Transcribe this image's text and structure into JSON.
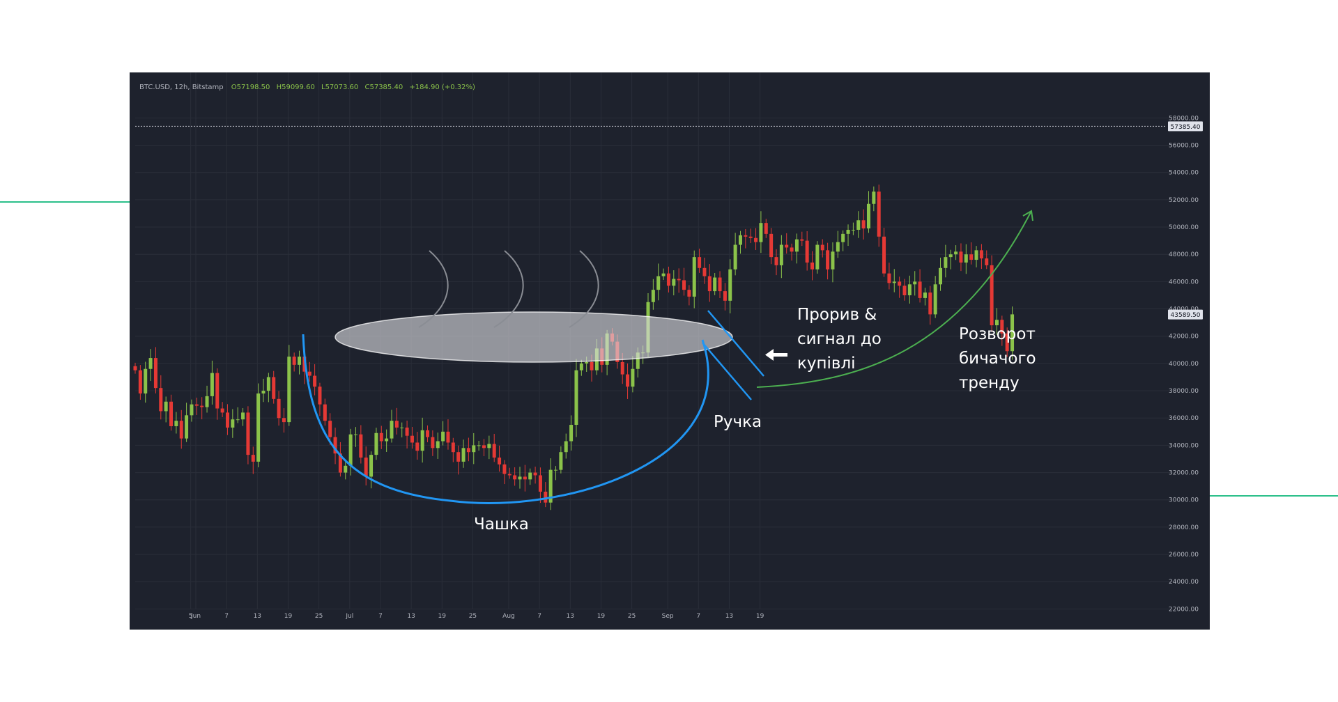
{
  "page": {
    "accent_color": "#2bbf8a"
  },
  "chart_data": {
    "type": "candlestick",
    "header": {
      "symbol": "BTC.USD, 12h, Bitstamp",
      "open": "O57198.50",
      "high": "H59099.60",
      "low": "L57073.60",
      "close": "C57385.40",
      "change": "+184.90 (+0.32%)"
    },
    "ylim": [
      21000,
      59500
    ],
    "y_ticks": [
      "22000.00",
      "24000.00",
      "26000.00",
      "28000.00",
      "30000.00",
      "32000.00",
      "34000.00",
      "36000.00",
      "38000.00",
      "40000.00",
      "42000.00",
      "44000.00",
      "46000.00",
      "48000.00",
      "50000.00",
      "52000.00",
      "54000.00",
      "56000.00",
      "58000.00"
    ],
    "x_ticks": [
      {
        "day": -1,
        "label": "5"
      },
      {
        "day": 0,
        "label": "Jun"
      },
      {
        "day": 6,
        "label": "7"
      },
      {
        "day": 12,
        "label": "13"
      },
      {
        "day": 18,
        "label": "19"
      },
      {
        "day": 24,
        "label": "25"
      },
      {
        "day": 30,
        "label": "Jul"
      },
      {
        "day": 36,
        "label": "7"
      },
      {
        "day": 42,
        "label": "13"
      },
      {
        "day": 48,
        "label": "19"
      },
      {
        "day": 54,
        "label": "25"
      },
      {
        "day": 61,
        "label": "Aug"
      },
      {
        "day": 67,
        "label": "7"
      },
      {
        "day": 73,
        "label": "13"
      },
      {
        "day": 79,
        "label": "19"
      },
      {
        "day": 85,
        "label": "25"
      },
      {
        "day": 92,
        "label": "Sep"
      },
      {
        "day": 98,
        "label": "7"
      },
      {
        "day": 104,
        "label": "13"
      },
      {
        "day": 110,
        "label": "19"
      }
    ],
    "price_labels": [
      {
        "value": 57385.4,
        "text": "57385.40",
        "bg": "#e0e3eb",
        "fg": "#131722"
      },
      {
        "value": 43589.5,
        "text": "43589.50",
        "bg": "#e0e3eb",
        "fg": "#131722"
      }
    ],
    "closes": [
      39500,
      37800,
      39600,
      40400,
      38200,
      36500,
      37200,
      35400,
      35800,
      34500,
      36200,
      37000,
      36900,
      36800,
      37600,
      39300,
      36700,
      36400,
      35300,
      35900,
      35900,
      36400,
      33300,
      32800,
      37800,
      38000,
      39000,
      37400,
      36000,
      35700,
      40500,
      39900,
      40500,
      39400,
      39100,
      38300,
      37000,
      35800,
      34600,
      33400,
      32000,
      32500,
      34800,
      34800,
      33100,
      31700,
      33300,
      34900,
      34300,
      34500,
      35800,
      35300,
      35300,
      34700,
      34200,
      33600,
      35100,
      34600,
      33800,
      34300,
      35000,
      34200,
      33500,
      32800,
      33800,
      33500,
      34000,
      34000,
      33800,
      34100,
      33100,
      32600,
      31900,
      31800,
      31500,
      31700,
      31500,
      32000,
      31800,
      30600,
      29800,
      32200,
      32200,
      33500,
      34300,
      35500,
      39500,
      40000,
      40100,
      39500,
      41100,
      39900,
      42200,
      41600,
      40100,
      39200,
      38300,
      39600,
      40800,
      40800,
      44500,
      45400,
      46400,
      46600,
      45700,
      46200,
      46100,
      45400,
      44900,
      47800,
      47000,
      46400,
      45300,
      46300,
      45300,
      44600,
      46900,
      48700,
      49400,
      49300,
      49200,
      48900,
      50300,
      49500,
      47800,
      47200,
      48700,
      48500,
      48200,
      49100,
      49000,
      47400,
      46900,
      48700,
      48300,
      46900,
      48200,
      48900,
      49500,
      49800,
      49800,
      50500,
      49900,
      51700,
      52600,
      49300,
      46600,
      45900,
      46000,
      45700,
      45000,
      45800,
      46000,
      44800,
      45200,
      43600,
      45800,
      47000,
      47800,
      48000,
      48200,
      47400,
      48000,
      47600,
      48300,
      47700,
      47200,
      42800,
      43200,
      42200,
      40900,
      43600
    ],
    "annotations": {
      "cup": "Чашка",
      "handle": "Ручка",
      "breakout": [
        "Прорив &",
        "сигнал до",
        "купівлі"
      ],
      "reversal": [
        "Розворот",
        "бичачого",
        "тренду"
      ]
    }
  }
}
